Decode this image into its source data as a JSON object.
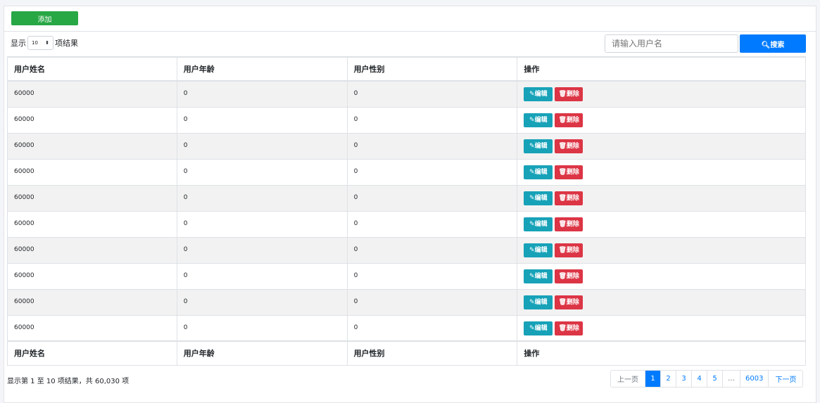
{
  "toolbar": {
    "add_label": "添加"
  },
  "length": {
    "prefix": "显示",
    "value": "10",
    "suffix": "项结果"
  },
  "search": {
    "placeholder": "请输入用户名",
    "button": "搜索"
  },
  "table": {
    "columns": [
      "用户姓名",
      "用户年龄",
      "用户性别",
      "操作"
    ],
    "rows": [
      [
        "60000",
        "0",
        "0"
      ],
      [
        "60000",
        "0",
        "0"
      ],
      [
        "60000",
        "0",
        "0"
      ],
      [
        "60000",
        "0",
        "0"
      ],
      [
        "60000",
        "0",
        "0"
      ],
      [
        "60000",
        "0",
        "0"
      ],
      [
        "60000",
        "0",
        "0"
      ],
      [
        "60000",
        "0",
        "0"
      ],
      [
        "60000",
        "0",
        "0"
      ],
      [
        "60000",
        "0",
        "0"
      ]
    ],
    "edit_label": "编辑",
    "delete_label": "删除"
  },
  "info": "显示第 1 至 10 项结果，共 60,030 项",
  "pagination": {
    "prev": "上一页",
    "pages": [
      "1",
      "2",
      "3",
      "4",
      "5",
      "…",
      "6003"
    ],
    "current": "1",
    "next": "下一页"
  }
}
